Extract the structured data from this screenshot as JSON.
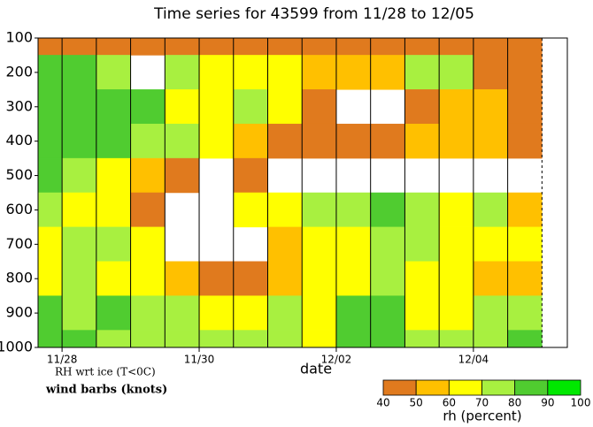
{
  "chart_data": {
    "type": "heatmap",
    "title": "Time series for 43599 from 11/28 to 12/05",
    "x_label": "date",
    "note": "RH wrt ice (T<0C)",
    "subnote": "wind barbs (knots)",
    "x": [
      -0.25,
      0.25,
      0.75,
      1.25,
      1.75,
      2.25,
      2.75,
      3.25,
      3.75,
      4.25,
      4.75,
      5.25,
      5.75,
      6.25,
      6.75,
      7.25
    ],
    "y": [
      100,
      200,
      300,
      400,
      500,
      600,
      700,
      800,
      900,
      1000
    ],
    "values": [
      [
        45,
        45,
        45,
        45,
        45,
        45,
        45,
        45,
        45,
        45,
        45,
        45,
        45,
        45,
        45,
        30
      ],
      [
        85,
        85,
        75,
        30,
        75,
        65,
        70,
        65,
        60,
        55,
        55,
        75,
        80,
        50,
        45,
        30
      ],
      [
        90,
        90,
        85,
        85,
        65,
        70,
        75,
        70,
        45,
        35,
        30,
        40,
        60,
        55,
        45,
        30
      ],
      [
        90,
        90,
        85,
        80,
        75,
        65,
        60,
        50,
        50,
        45,
        50,
        55,
        55,
        60,
        45,
        30
      ],
      [
        85,
        80,
        70,
        60,
        45,
        30,
        45,
        30,
        30,
        30,
        30,
        30,
        30,
        30,
        30,
        30
      ],
      [
        75,
        70,
        65,
        50,
        30,
        30,
        65,
        70,
        75,
        80,
        85,
        80,
        70,
        75,
        60,
        30
      ],
      [
        70,
        75,
        80,
        65,
        30,
        30,
        30,
        60,
        70,
        70,
        75,
        80,
        65,
        65,
        65,
        30
      ],
      [
        65,
        80,
        70,
        65,
        55,
        50,
        45,
        60,
        65,
        70,
        75,
        70,
        65,
        60,
        55,
        30
      ],
      [
        85,
        80,
        85,
        75,
        75,
        65,
        70,
        75,
        65,
        85,
        90,
        70,
        65,
        75,
        75,
        30
      ],
      [
        90,
        85,
        80,
        80,
        80,
        75,
        75,
        80,
        70,
        85,
        90,
        75,
        80,
        80,
        85,
        30
      ]
    ],
    "xlim": [
      -0.35,
      7.37
    ],
    "xticks": [
      {
        "value": 0,
        "label": "11/28"
      },
      {
        "value": 2,
        "label": "11/30"
      },
      {
        "value": 4,
        "label": "12/02"
      },
      {
        "value": 6,
        "label": "12/04"
      }
    ],
    "ylim": [
      1000,
      100
    ],
    "yticks": [
      100,
      200,
      300,
      400,
      500,
      600,
      700,
      800,
      900,
      1000
    ],
    "colorbar": {
      "label": "rh (percent)",
      "bins": [
        40,
        50,
        60,
        70,
        80,
        90,
        100
      ],
      "colors": [
        "#e07a1e",
        "#ffc000",
        "#ffff00",
        "#a8f040",
        "#50cc30",
        "#00e800"
      ]
    }
  }
}
